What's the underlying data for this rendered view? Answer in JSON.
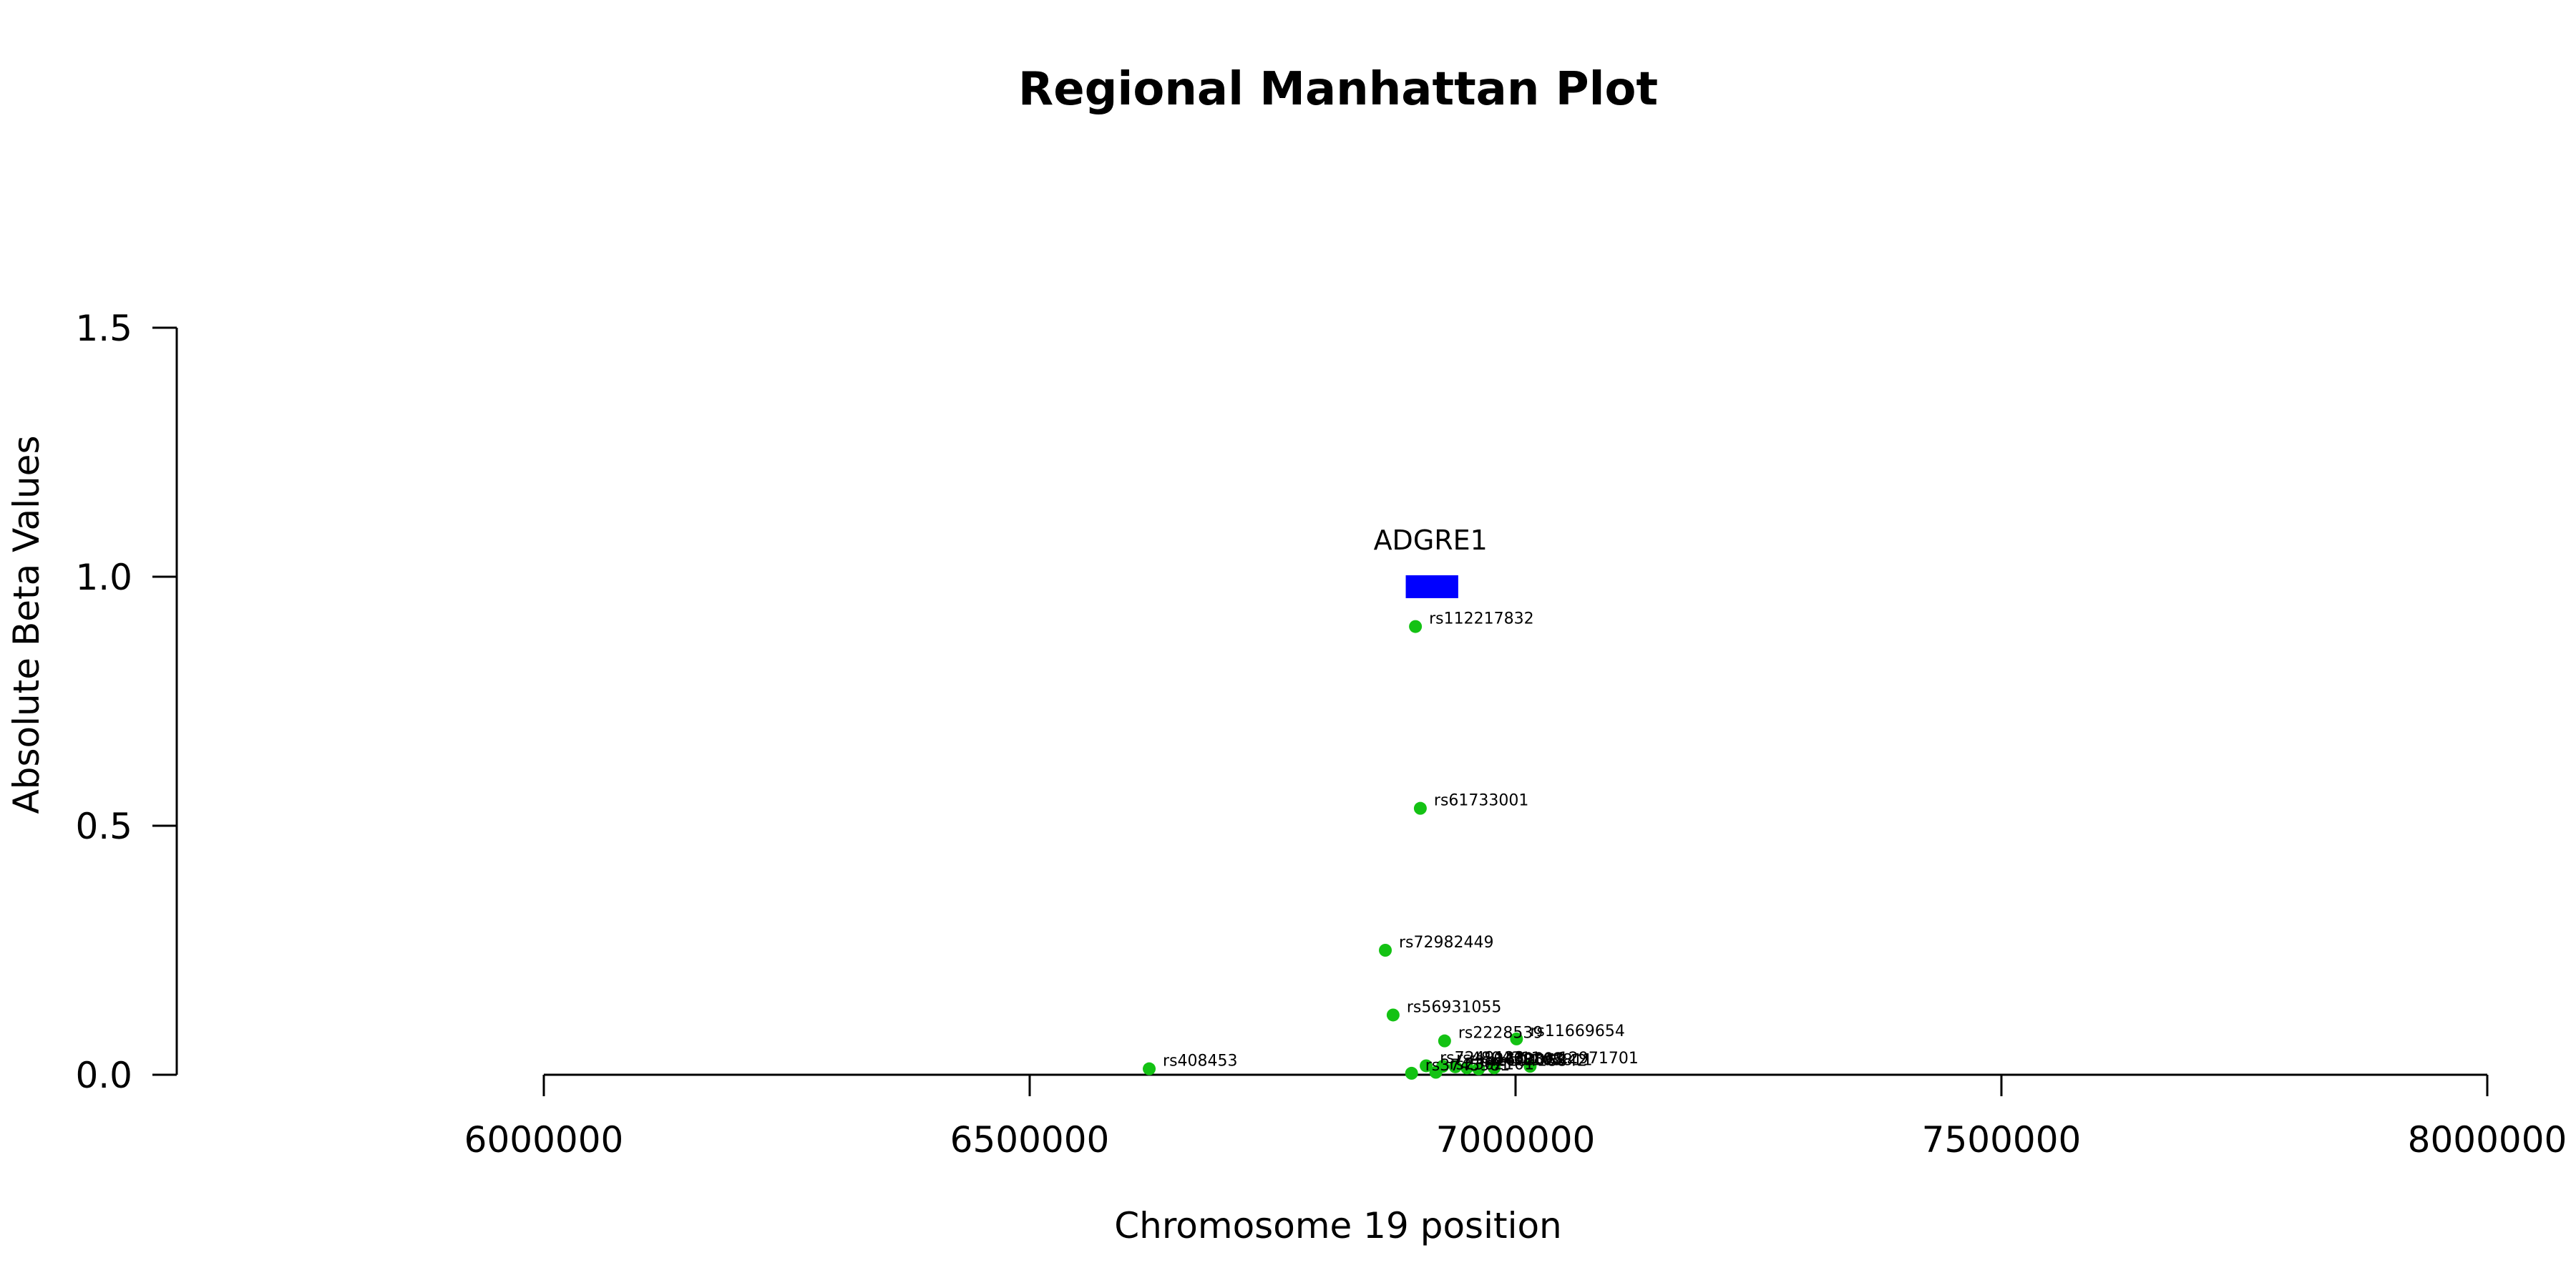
{
  "chart_data": {
    "type": "scatter",
    "title": "Regional Manhattan Plot",
    "xlabel": "Chromosome 19 position",
    "ylabel": "Absolute Beta Values",
    "xlim": [
      6000000,
      8000000
    ],
    "ylim": [
      0,
      1.5
    ],
    "x_ticks": [
      6000000,
      6500000,
      7000000,
      7500000,
      8000000
    ],
    "x_tick_labels": [
      "6000000",
      "6500000",
      "7000000",
      "7500000",
      "8000000"
    ],
    "y_ticks": [
      0.0,
      0.5,
      1.0,
      1.5
    ],
    "y_tick_labels": [
      "0.0",
      "0.5",
      "1.0",
      "1.5"
    ],
    "grid": false,
    "point_color": "#14c214",
    "gene": {
      "name": "ADGRE1",
      "start": 6887000,
      "end": 6941000,
      "y": 0.98,
      "color": "#0000ff"
    },
    "points": [
      {
        "label": "rs112217832",
        "x": 6897000,
        "y": 0.9
      },
      {
        "label": "rs61733001",
        "x": 6902000,
        "y": 0.535
      },
      {
        "label": "rs72982449",
        "x": 6866000,
        "y": 0.25
      },
      {
        "label": "rs56931055",
        "x": 6874000,
        "y": 0.12
      },
      {
        "label": "rs2228539",
        "x": 6927000,
        "y": 0.068
      },
      {
        "label": "rs11669654",
        "x": 7001000,
        "y": 0.072
      },
      {
        "label": "rs408453",
        "x": 6623000,
        "y": 0.012
      },
      {
        "label": "rs12971701",
        "x": 7015000,
        "y": 0.017
      },
      {
        "label": "rs7249123",
        "x": 6908000,
        "y": 0.018
      },
      {
        "label": "rs4804311",
        "x": 6925000,
        "y": 0.017
      },
      {
        "label": "rs10409893",
        "x": 6938000,
        "y": 0.016
      },
      {
        "label": "rs1673068",
        "x": 6950000,
        "y": 0.014
      },
      {
        "label": "rs3745981",
        "x": 6893000,
        "y": 0.003
      },
      {
        "label": "rs2302101",
        "x": 6918000,
        "y": 0.005
      },
      {
        "label": "rs10418842",
        "x": 6962000,
        "y": 0.012
      },
      {
        "label": "rs8105811",
        "x": 6978000,
        "y": 0.014
      }
    ]
  }
}
